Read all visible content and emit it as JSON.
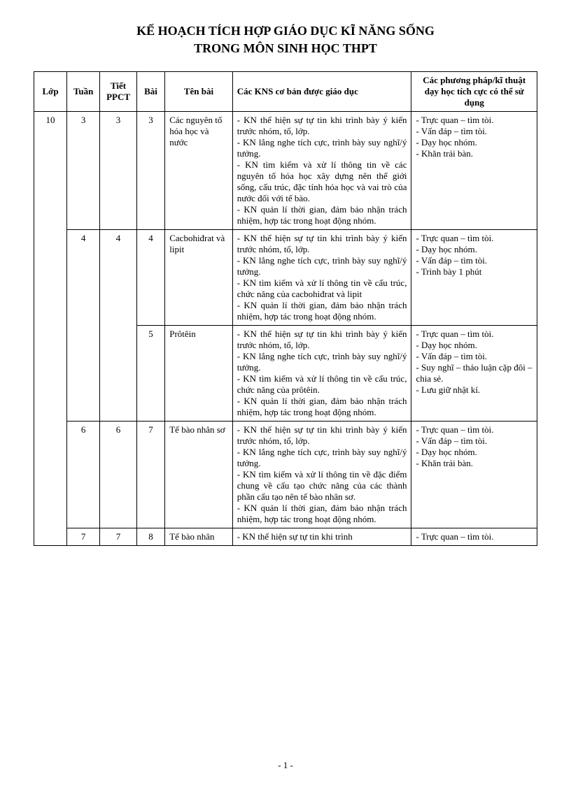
{
  "title_line1": "KẾ HOẠCH TÍCH HỢP GIÁO DỤC KĨ NĂNG SỐNG",
  "title_line2": "TRONG MÔN SINH HỌC THPT",
  "headers": {
    "lop": "Lớp",
    "tuan": "Tuần",
    "tiet": "Tiết PPCT",
    "bai": "Bài",
    "ten": "Tên bài",
    "kns": "Các KNS cơ bản được giáo dục",
    "pp": "Các phương pháp/kĩ thuật dạy học tích cực có thể sử dụng"
  },
  "rows": [
    {
      "lop": "10",
      "tuan": "3",
      "tiet": "3",
      "bai": "3",
      "ten": "Các nguyên tố hóa học và nước",
      "kns": "- KN thể hiện sự tự tin khi trình bày ý kiến trước nhóm, tổ, lớp.\n- KN lắng nghe tích cực, trình bày suy nghĩ/ý tưởng.\n- KN tìm kiếm và xử lí thông tin về các nguyên tố hóa học xây dựng nên thế giới sống, cấu trúc, đặc tính hóa học và vai trò của nước đối với tế bào.\n- KN quản lí thời gian, đảm bảo nhận trách nhiệm, hợp tác trong hoạt động nhóm.",
      "pp": "- Trực quan – tìm tòi.\n- Vấn đáp – tìm tòi.\n- Dạy học nhóm.\n- Khăn trải bàn."
    },
    {
      "lop": "",
      "tuan": "4",
      "tiet": "4",
      "bai": "4",
      "ten": "Cacbohiđrat và lipit",
      "kns": "- KN thể hiện sự tự tin khi trình bày ý kiến trước nhóm, tổ, lớp.\n- KN lắng nghe tích cực, trình bày suy nghĩ/ý tưởng.\n- KN tìm kiếm và xử lí thông tin về cấu trúc, chức năng của cacbohiđrat và lipit\n- KN quản lí thời gian, đảm bảo nhận trách nhiệm, hợp tác trong hoạt động nhóm.",
      "pp": "- Trực quan – tìm tòi.\n- Dạy học nhóm.\n- Vấn đáp – tìm tòi.\n- Trình bày 1 phút"
    },
    {
      "lop": "",
      "tuan": "",
      "tiet": "",
      "bai": "5",
      "ten": "Prôtêin",
      "kns": "- KN thể hiện sự tự tin khi trình bày ý kiến trước nhóm, tổ, lớp.\n- KN lắng nghe tích cực, trình bày suy nghĩ/ý tưởng.\n- KN tìm kiếm và xử lí thông tin về cấu trúc, chức năng của prôtêin.\n- KN quản lí thời gian, đảm bảo nhận trách nhiệm, hợp tác trong hoạt động nhóm.",
      "pp": "- Trực quan – tìm tòi.\n- Dạy học nhóm.\n- Vấn đáp – tìm tòi.\n- Suy nghĩ – thảo luận cặp đôi – chia sẻ.\n- Lưu giữ nhật kí."
    },
    {
      "lop": "",
      "tuan": "6",
      "tiet": "6",
      "bai": "7",
      "ten": "Tế bào nhân sơ",
      "kns": "- KN thể hiện sự tự tin khi trình bày ý kiến trước nhóm, tổ, lớp.\n- KN lắng nghe tích cực, trình bày suy nghĩ/ý tưởng.\n- KN tìm kiếm và xử lí thông tin về đặc điểm chung về cấu tạo chức năng của các thành phần cấu tạo nên tế bào nhân sơ.\n- KN quản lí thời gian, đảm bảo nhận trách nhiệm, hợp tác trong hoạt động nhóm.",
      "pp": "- Trực quan – tìm tòi.\n- Vấn đáp – tìm tòi.\n- Dạy học nhóm.\n- Khăn trải bàn."
    },
    {
      "lop": "",
      "tuan": "7",
      "tiet": "7",
      "bai": "8",
      "ten": "Tế bào nhân",
      "kns": "- KN thể hiện sự tự tin khi trình",
      "pp": "- Trực quan – tìm tòi."
    }
  ],
  "page_num": "- 1 -",
  "row_spans": {
    "lop_span": 5,
    "tuan_tiet_span_row1": 2
  }
}
